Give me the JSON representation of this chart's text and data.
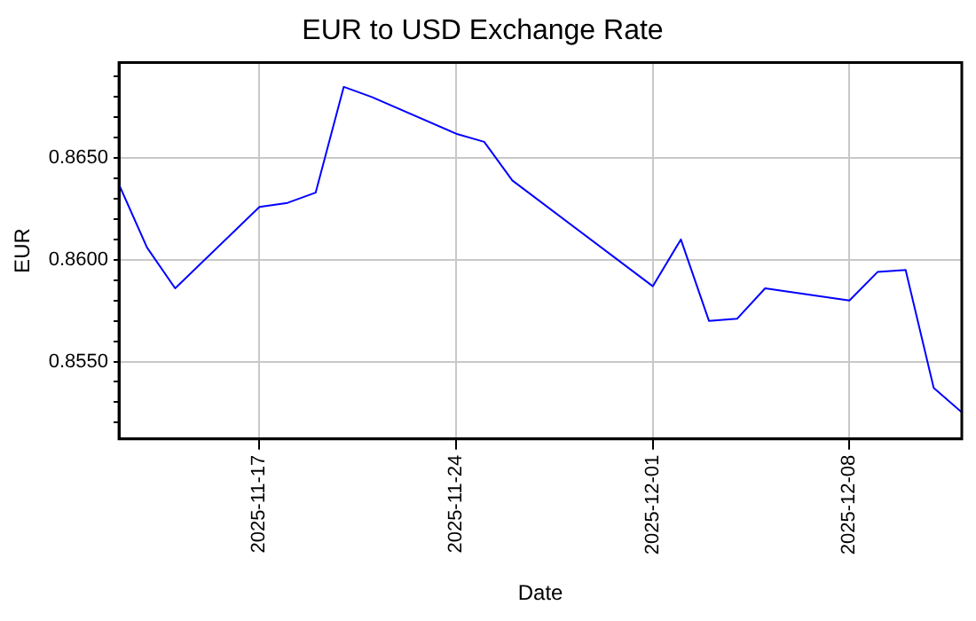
{
  "chart_data": {
    "type": "line",
    "title": "EUR to USD Exchange Rate",
    "xlabel": "Date",
    "ylabel": "EUR",
    "x": [
      "2025-11-12",
      "2025-11-13",
      "2025-11-14",
      "2025-11-17",
      "2025-11-18",
      "2025-11-19",
      "2025-11-20",
      "2025-11-21",
      "2025-11-24",
      "2025-11-25",
      "2025-11-26",
      "2025-12-01",
      "2025-12-02",
      "2025-12-03",
      "2025-12-04",
      "2025-12-05",
      "2025-12-08",
      "2025-12-09",
      "2025-12-10",
      "2025-12-11",
      "2025-12-12"
    ],
    "series": [
      {
        "color": "#0000ff",
        "values": [
          0.8637,
          0.8606,
          0.8586,
          0.8626,
          0.8628,
          0.8633,
          0.8685,
          0.868,
          0.8662,
          0.8658,
          0.8639,
          0.8587,
          0.861,
          0.857,
          0.8571,
          0.8586,
          0.858,
          0.8594,
          0.8595,
          0.8537,
          0.8525
        ]
      }
    ],
    "xlim": [
      "2025-11-12",
      "2025-12-12"
    ],
    "xticks": [
      "2025-11-17",
      "2025-11-24",
      "2025-12-01",
      "2025-12-08"
    ],
    "ylim": [
      0.8512,
      0.8697
    ],
    "yticks": [
      {
        "value": 0.852,
        "label": null
      },
      {
        "value": 0.853,
        "label": null
      },
      {
        "value": 0.854,
        "label": null
      },
      {
        "value": 0.855,
        "label": "0.8550"
      },
      {
        "value": 0.856,
        "label": null
      },
      {
        "value": 0.857,
        "label": null
      },
      {
        "value": 0.858,
        "label": null
      },
      {
        "value": 0.859,
        "label": null
      },
      {
        "value": 0.86,
        "label": "0.8600"
      },
      {
        "value": 0.861,
        "label": null
      },
      {
        "value": 0.862,
        "label": null
      },
      {
        "value": 0.863,
        "label": null
      },
      {
        "value": 0.864,
        "label": null
      },
      {
        "value": 0.865,
        "label": "0.8650"
      },
      {
        "value": 0.866,
        "label": null
      },
      {
        "value": 0.867,
        "label": null
      },
      {
        "value": 0.868,
        "label": null
      },
      {
        "value": 0.869,
        "label": null
      }
    ],
    "grid": true,
    "marker": "none",
    "line_style": "solid",
    "legend": false
  }
}
